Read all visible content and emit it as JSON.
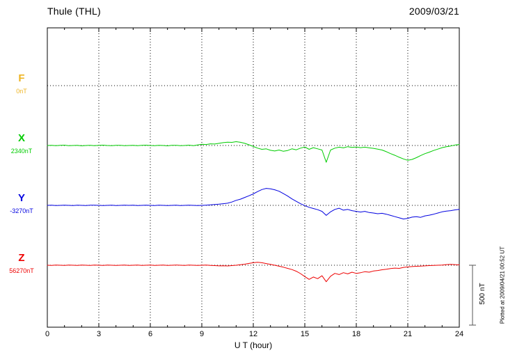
{
  "chart_data": {
    "type": "line",
    "title": "Thule (THL)",
    "date": "2009/03/21",
    "xlabel": "U T (hour)",
    "x_ticks": [
      "0",
      "3",
      "6",
      "9",
      "12",
      "15",
      "18",
      "21",
      "24"
    ],
    "x_range": [
      0,
      24
    ],
    "grid": true,
    "legend_position": "left-of-traces",
    "sample_step_hours": 0.25,
    "x_start": 0,
    "scale_bar": {
      "label": "500 nT",
      "nT": 500
    },
    "plotted_at": "Plotted at 2009/04/21 00:52 UT",
    "series": [
      {
        "name": "F",
        "label": "F",
        "baseline_label": "0nT",
        "baseline_nT": 0,
        "color": "#eeb422",
        "values": []
      },
      {
        "name": "X",
        "label": "X",
        "baseline_label": "2340nT",
        "baseline_nT": 2340,
        "color": "#00cc00",
        "values": [
          0,
          2,
          -2,
          1,
          3,
          -1,
          0,
          2,
          -3,
          0,
          2,
          -2,
          1,
          3,
          0,
          -2,
          1,
          2,
          -1,
          0,
          2,
          -2,
          1,
          3,
          0,
          -2,
          2,
          0,
          -3,
          1,
          2,
          -1,
          0,
          3,
          -2,
          4,
          10,
          8,
          14,
          12,
          18,
          24,
          28,
          26,
          32,
          27,
          18,
          6,
          -8,
          -22,
          -32,
          -28,
          -40,
          -46,
          -38,
          -48,
          -42,
          -28,
          -36,
          -22,
          -12,
          -32,
          -18,
          -28,
          -38,
          -140,
          -38,
          -22,
          -14,
          -20,
          -10,
          -16,
          -12,
          -18,
          -14,
          -20,
          -24,
          -30,
          -38,
          -52,
          -68,
          -82,
          -98,
          -112,
          -124,
          -116,
          -102,
          -84,
          -68,
          -56,
          -42,
          -30,
          -18,
          -10,
          -4,
          4,
          8
        ]
      },
      {
        "name": "Y",
        "label": "Y",
        "baseline_label": "-3270nT",
        "baseline_nT": -3270,
        "color": "#0000e0",
        "values": [
          0,
          1,
          -1,
          0,
          2,
          0,
          -2,
          1,
          0,
          -1,
          1,
          2,
          0,
          -1,
          0,
          1,
          -2,
          0,
          1,
          0,
          2,
          -1,
          0,
          1,
          0,
          -1,
          1,
          0,
          -2,
          0,
          1,
          -1,
          0,
          2,
          0,
          -1,
          0,
          2,
          4,
          7,
          10,
          14,
          18,
          28,
          42,
          52,
          66,
          80,
          96,
          115,
          132,
          142,
          138,
          130,
          118,
          98,
          78,
          54,
          34,
          14,
          -2,
          -16,
          -26,
          -36,
          -50,
          -84,
          -54,
          -34,
          -24,
          -40,
          -34,
          -44,
          -50,
          -56,
          -50,
          -60,
          -64,
          -70,
          -66,
          -74,
          -84,
          -94,
          -104,
          -114,
          -108,
          -98,
          -94,
          -100,
          -88,
          -82,
          -74,
          -64,
          -54,
          -48,
          -44,
          -38,
          -34
        ]
      },
      {
        "name": "Z",
        "label": "Z",
        "baseline_label": "56270nT",
        "baseline_nT": 56270,
        "color": "#ee0000",
        "values": [
          0,
          -1,
          1,
          0,
          -2,
          1,
          0,
          -1,
          2,
          0,
          -2,
          1,
          0,
          -1,
          1,
          0,
          -2,
          0,
          2,
          -1,
          0,
          1,
          -1,
          0,
          1,
          -2,
          0,
          1,
          -1,
          0,
          2,
          0,
          -1,
          1,
          0,
          -2,
          0,
          1,
          -1,
          -3,
          -5,
          -4,
          -6,
          -3,
          0,
          4,
          9,
          15,
          21,
          25,
          21,
          14,
          7,
          0,
          -8,
          -16,
          -26,
          -36,
          -50,
          -70,
          -95,
          -118,
          -98,
          -112,
          -88,
          -138,
          -92,
          -68,
          -78,
          -62,
          -72,
          -58,
          -68,
          -62,
          -54,
          -58,
          -48,
          -44,
          -38,
          -34,
          -28,
          -24,
          -26,
          -18,
          -14,
          -11,
          -9,
          -7,
          -5,
          -3,
          -2,
          0,
          2,
          5,
          7,
          5,
          3
        ]
      }
    ]
  }
}
